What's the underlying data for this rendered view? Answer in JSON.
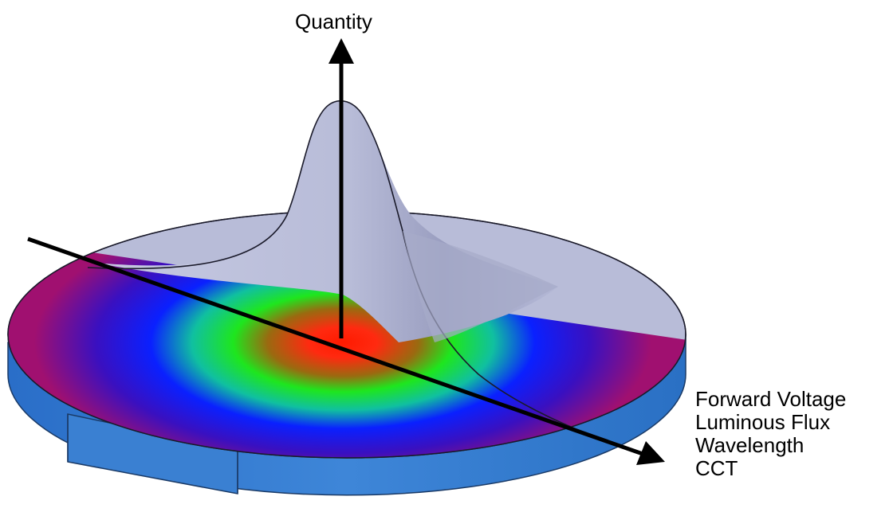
{
  "axes": {
    "vertical_label": "Quantity",
    "horizontal_labels": [
      "Forward Voltage",
      "Luminous Flux",
      "Wavelength",
      "CCT"
    ]
  },
  "colors": {
    "wafer_top": "#b8bcd8",
    "wafer_edge": "#3a7fd0",
    "peak_shade": "#9a9ec0",
    "heatmap_center": "#ff1a00",
    "heatmap_ring_green": "#1ee61e",
    "heatmap_ring_blue": "#0a20ff",
    "heatmap_outer": "#a01070",
    "axis": "#000000"
  },
  "icons": {
    "axis_arrowhead": "triangle-arrowhead-icon"
  }
}
